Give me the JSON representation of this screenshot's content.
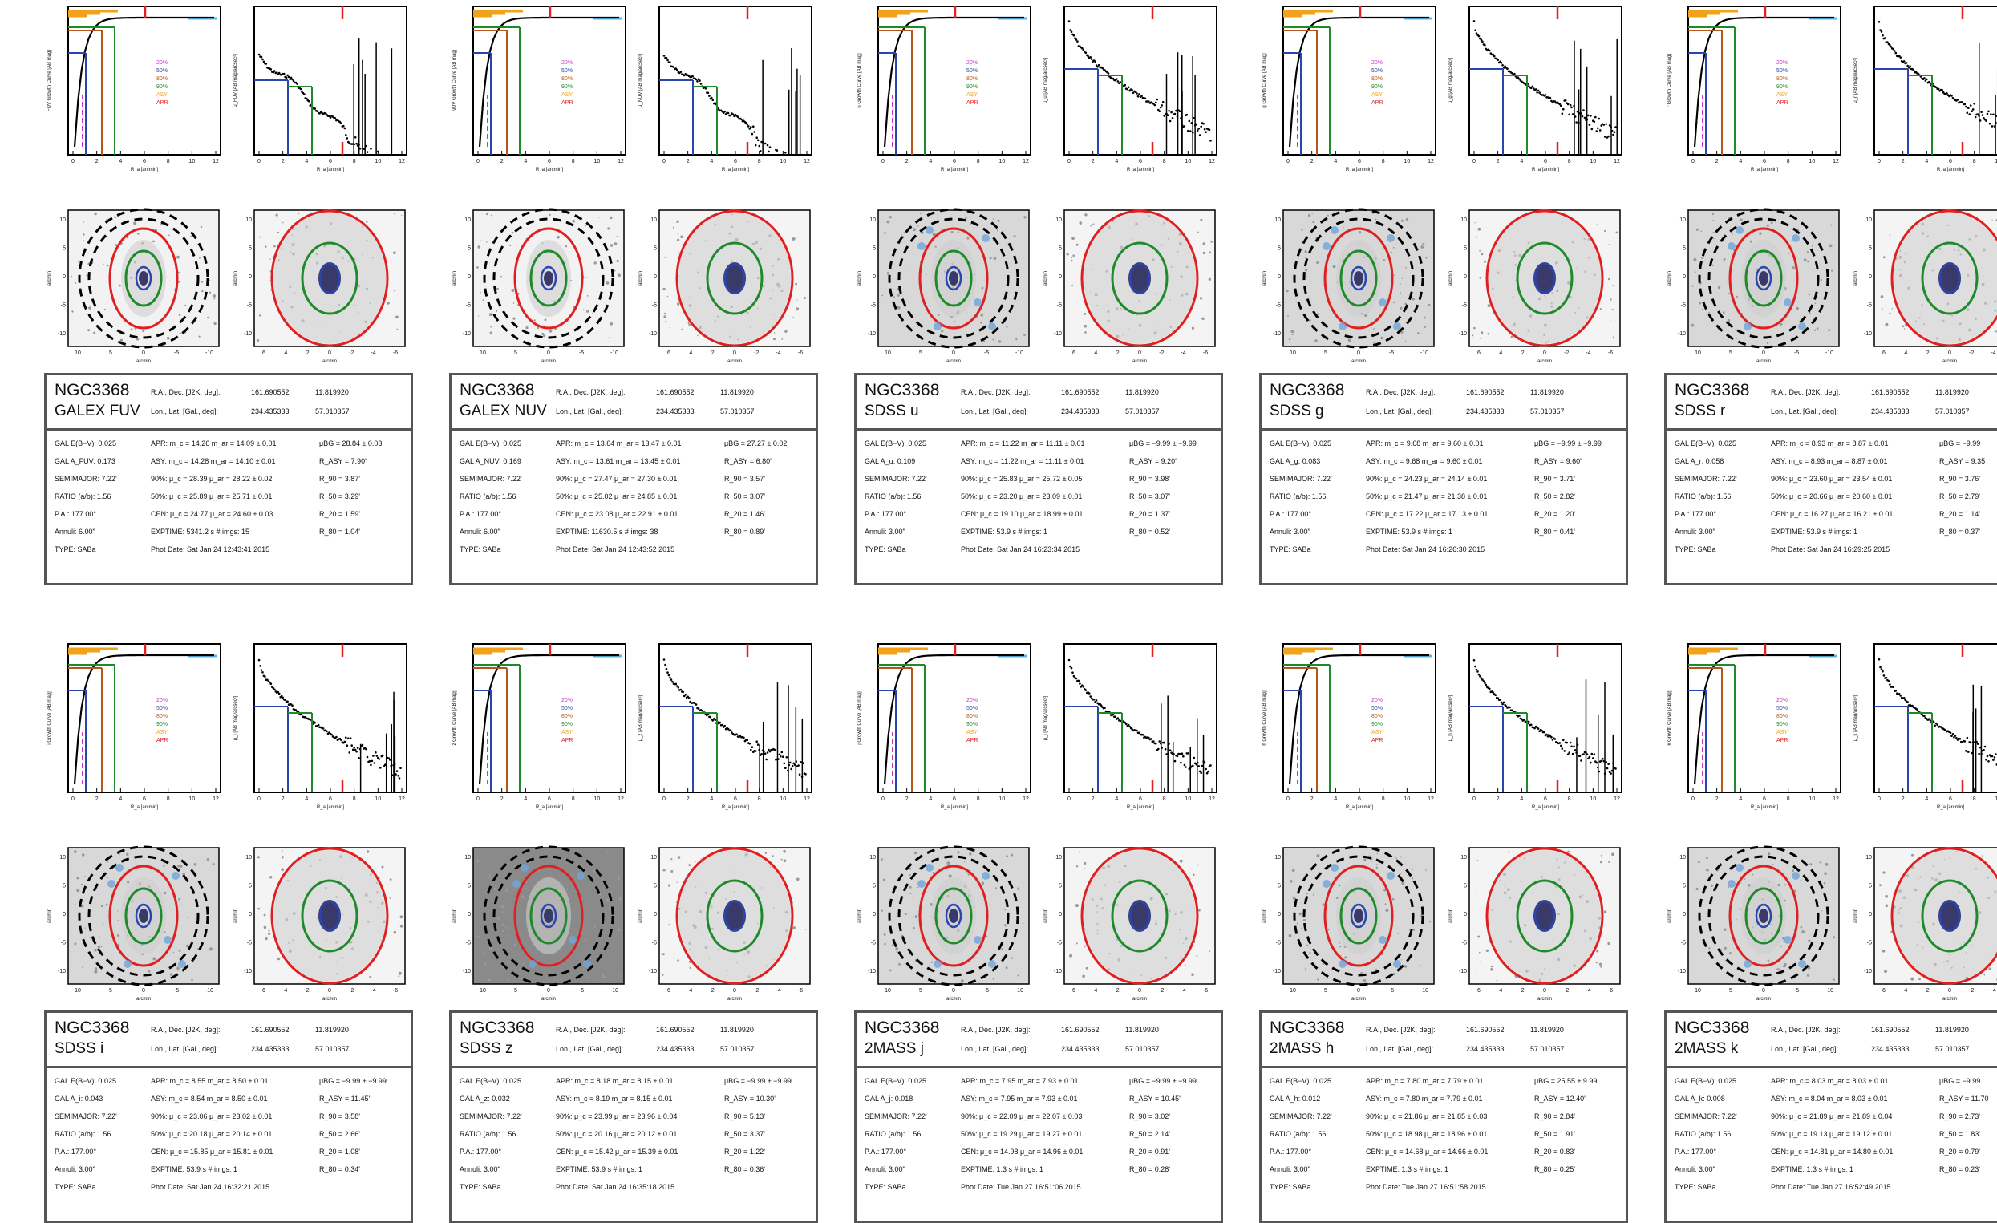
{
  "common": {
    "galaxy": "NGC3368",
    "radec_label": "R.A., Dec. [J2K, deg]:",
    "ra": "161.690552",
    "dec": "11.819920",
    "lonlat_label": "Lon., Lat. [Gal., deg]:",
    "lon": "234.435333",
    "lat": "57.010357",
    "semimajor": "SEMIMAJOR: 7.22'",
    "ratio": "RATIO (a/b): 1.56",
    "pa": "P.A.: 177.00°",
    "type": "TYPE: SABa",
    "legend": [
      "20%",
      "50%",
      "80%",
      "90%",
      "ASY",
      "APR"
    ],
    "legend_colors": [
      "#cc33cc",
      "#2a45b0",
      "#b5561b",
      "#1e8a2a",
      "#f2a21a",
      "#e02020"
    ],
    "xlabel": "R_a [arcmin]",
    "img_xlabel": "arcmin",
    "img_ylabel": "arcmin",
    "img_xticks_wide": [
      "10",
      "5",
      "0",
      "-5",
      "-10"
    ],
    "img_xticks_zoom": [
      "6",
      "4",
      "2",
      "0",
      "-2",
      "-4",
      "-6"
    ],
    "img_yticks": [
      "10",
      "5",
      "0",
      "-5",
      "-10"
    ],
    "plot_xticks": [
      "0",
      "2",
      "4",
      "6",
      "8",
      "10",
      "12"
    ]
  },
  "panels": [
    {
      "band": "GALEX FUV",
      "ylabel_growth": "FUV Growth Curve [AB mag]",
      "ylabel_profile": "μ_FUV [AB mag/arcsec²]",
      "ebv": "GAL E(B−V): 0.025",
      "ext": "GAL A_FUV: 0.173",
      "apr": "APR: m_c = 14.26  m_ar = 14.09 ± 0.01",
      "asy": "ASY: m_c = 14.28  m_ar = 14.10 ± 0.01",
      "p90": "90%: μ_c = 28.39  μ_ar = 28.22 ± 0.02",
      "p50": "50%: μ_c = 25.89  μ_ar = 25.71 ± 0.01",
      "cen": "CEN: μ_c = 24.77  μ_ar = 24.60 ± 0.03",
      "exptime": "EXPTIME: 5341.2 s  # imgs: 15",
      "annuli": "Annuli: 6.00\"",
      "photdate": "Phot Date: Sat Jan 24 12:43:41 2015",
      "mubg": "μBG = 28.84 ± 0.03",
      "rasy": "R_ASY = 7.90'",
      "r90": "R_90 = 3.87'",
      "r50": "R_50 = 3.29'",
      "r20": "R_20 = 1.59'",
      "r80": "R_80 = 1.04'"
    },
    {
      "band": "GALEX NUV",
      "ylabel_growth": "NUV Growth Curve [AB mag]",
      "ylabel_profile": "μ_NUV [AB mag/arcsec²]",
      "ebv": "GAL E(B−V): 0.025",
      "ext": "GAL A_NUV: 0.169",
      "apr": "APR: m_c = 13.64  m_ar = 13.47 ± 0.01",
      "asy": "ASY: m_c = 13.61  m_ar = 13.45 ± 0.01",
      "p90": "90%: μ_c = 27.47  μ_ar = 27.30 ± 0.01",
      "p50": "50%: μ_c = 25.02  μ_ar = 24.85 ± 0.01",
      "cen": "CEN: μ_c = 23.08  μ_ar = 22.91 ± 0.01",
      "exptime": "EXPTIME: 11630.5 s  # imgs: 38",
      "annuli": "Annuli: 6.00\"",
      "photdate": "Phot Date: Sat Jan 24 12:43:52 2015",
      "mubg": "μBG = 27.27 ± 0.02",
      "rasy": "R_ASY = 6.80'",
      "r90": "R_90 = 3.57'",
      "r50": "R_50 = 3.07'",
      "r20": "R_20 = 1.46'",
      "r80": "R_80 = 0.89'"
    },
    {
      "band": "SDSS u",
      "ylabel_growth": "u Growth Curve [AB mag]",
      "ylabel_profile": "μ_u [AB mag/arcsec²]",
      "ebv": "GAL E(B−V): 0.025",
      "ext": "GAL A_u: 0.109",
      "apr": "APR: m_c = 11.22  m_ar = 11.11 ± 0.01",
      "asy": "ASY: m_c = 11.22  m_ar = 11.11 ± 0.01",
      "p90": "90%: μ_c = 25.83  μ_ar = 25.72 ± 0.05",
      "p50": "50%: μ_c = 23.20  μ_ar = 23.09 ± 0.01",
      "cen": "CEN: μ_c = 19.10  μ_ar = 18.99 ± 0.01",
      "exptime": "EXPTIME: 53.9 s  # imgs: 1",
      "annuli": "Annuli: 3.00\"",
      "photdate": "Phot Date: Sat Jan 24 16:23:34 2015",
      "mubg": "μBG = −9.99 ± −9.99",
      "rasy": "R_ASY = 9.20'",
      "r90": "R_90 = 3.98'",
      "r50": "R_50 = 3.07'",
      "r20": "R_20 = 1.37'",
      "r80": "R_80 = 0.52'"
    },
    {
      "band": "SDSS g",
      "ylabel_growth": "g Growth Curve [AB mag]",
      "ylabel_profile": "μ_g [AB mag/arcsec²]",
      "ebv": "GAL E(B−V): 0.025",
      "ext": "GAL A_g: 0.083",
      "apr": "APR: m_c = 9.68  m_ar = 9.60 ± 0.01",
      "asy": "ASY: m_c = 9.68  m_ar = 9.60 ± 0.01",
      "p90": "90%: μ_c = 24.23  μ_ar = 24.14 ± 0.01",
      "p50": "50%: μ_c = 21.47  μ_ar = 21.38 ± 0.01",
      "cen": "CEN: μ_c = 17.22  μ_ar = 17.13 ± 0.01",
      "exptime": "EXPTIME: 53.9 s  # imgs: 1",
      "annuli": "Annuli: 3.00\"",
      "photdate": "Phot Date: Sat Jan 24 16:26:30 2015",
      "mubg": "μBG = −9.99 ± −9.99",
      "rasy": "R_ASY = 9.60'",
      "r90": "R_90 = 3.71'",
      "r50": "R_50 = 2.82'",
      "r20": "R_20 = 1.20'",
      "r80": "R_80 = 0.41'"
    },
    {
      "band": "SDSS r",
      "ylabel_growth": "r Growth Curve [AB mag]",
      "ylabel_profile": "μ_r [AB mag/arcsec²]",
      "ebv": "GAL E(B−V): 0.025",
      "ext": "GAL A_r: 0.058",
      "apr": "APR: m_c = 8.93  m_ar = 8.87 ± 0.01",
      "asy": "ASY: m_c = 8.93  m_ar = 8.87 ± 0.01",
      "p90": "90%: μ_c = 23.60  μ_ar = 23.54 ± 0.01",
      "p50": "50%: μ_c = 20.66  μ_ar = 20.60 ± 0.01",
      "cen": "CEN: μ_c = 16.27  μ_ar = 16.21 ± 0.01",
      "exptime": "EXPTIME: 53.9 s  # imgs: 1",
      "annuli": "Annuli: 3.00\"",
      "photdate": "Phot Date: Sat Jan 24 16:29:25 2015",
      "mubg": "μBG = −9.99",
      "rasy": "R_ASY = 9.35",
      "r90": "R_90 = 3.76'",
      "r50": "R_50 = 2.79'",
      "r20": "R_20 = 1.14'",
      "r80": "R_80 = 0.37'"
    },
    {
      "band": "SDSS i",
      "ylabel_growth": "i Growth Curve [AB mag]",
      "ylabel_profile": "μ_i [AB mag/arcsec²]",
      "ebv": "GAL E(B−V): 0.025",
      "ext": "GAL A_i: 0.043",
      "apr": "APR: m_c = 8.55  m_ar = 8.50 ± 0.01",
      "asy": "ASY: m_c = 8.54  m_ar = 8.50 ± 0.01",
      "p90": "90%: μ_c = 23.06  μ_ar = 23.02 ± 0.01",
      "p50": "50%: μ_c = 20.18  μ_ar = 20.14 ± 0.01",
      "cen": "CEN: μ_c = 15.85  μ_ar = 15.81 ± 0.01",
      "exptime": "EXPTIME: 53.9 s  # imgs: 1",
      "annuli": "Annuli: 3.00\"",
      "photdate": "Phot Date: Sat Jan 24 16:32:21 2015",
      "mubg": "μBG = −9.99 ± −9.99",
      "rasy": "R_ASY = 11.45'",
      "r90": "R_90 = 3.58'",
      "r50": "R_50 = 2.66'",
      "r20": "R_20 = 1.08'",
      "r80": "R_80 = 0.34'"
    },
    {
      "band": "SDSS z",
      "ylabel_growth": "z Growth Curve [AB mag]",
      "ylabel_profile": "μ_z [AB mag/arcsec²]",
      "ebv": "GAL E(B−V): 0.025",
      "ext": "GAL A_z: 0.032",
      "apr": "APR: m_c = 8.18  m_ar = 8.15 ± 0.01",
      "asy": "ASY: m_c = 8.19  m_ar = 8.15 ± 0.01",
      "p90": "90%: μ_c = 23.99  μ_ar = 23.96 ± 0.04",
      "p50": "50%: μ_c = 20.16  μ_ar = 20.12 ± 0.01",
      "cen": "CEN: μ_c = 15.42  μ_ar = 15.39 ± 0.01",
      "exptime": "EXPTIME: 53.9 s  # imgs: 1",
      "annuli": "Annuli: 3.00\"",
      "photdate": "Phot Date: Sat Jan 24 16:35:18 2015",
      "mubg": "μBG = −9.99 ± −9.99",
      "rasy": "R_ASY = 10.30'",
      "r90": "R_90 = 5.13'",
      "r50": "R_50 = 3.37'",
      "r20": "R_20 = 1.22'",
      "r80": "R_80 = 0.36'"
    },
    {
      "band": "2MASS j",
      "ylabel_growth": "j Growth Curve [AB mag]",
      "ylabel_profile": "μ_j [AB mag/arcsec²]",
      "ebv": "GAL E(B−V): 0.025",
      "ext": "GAL A_j: 0.018",
      "apr": "APR: m_c = 7.95  m_ar = 7.93 ± 0.01",
      "asy": "ASY: m_c = 7.95  m_ar = 7.93 ± 0.01",
      "p90": "90%: μ_c = 22.09  μ_ar = 22.07 ± 0.03",
      "p50": "50%: μ_c = 19.29  μ_ar = 19.27 ± 0.01",
      "cen": "CEN: μ_c = 14.98  μ_ar = 14.96 ± 0.01",
      "exptime": "EXPTIME: 1.3 s  # imgs: 1",
      "annuli": "Annuli: 3.00\"",
      "photdate": "Phot Date: Tue Jan 27 16:51:06 2015",
      "mubg": "μBG = −9.99 ± −9.99",
      "rasy": "R_ASY = 10.45'",
      "r90": "R_90 = 3.02'",
      "r50": "R_50 = 2.14'",
      "r20": "R_20 = 0.91'",
      "r80": "R_80 = 0.28'"
    },
    {
      "band": "2MASS h",
      "ylabel_growth": "h Growth Curve [AB mag]",
      "ylabel_profile": "μ_h [AB mag/arcsec²]",
      "ebv": "GAL E(B−V): 0.025",
      "ext": "GAL A_h: 0.012",
      "apr": "APR: m_c = 7.80  m_ar = 7.79 ± 0.01",
      "asy": "ASY: m_c = 7.80  m_ar = 7.79 ± 0.01",
      "p90": "90%: μ_c = 21.86  μ_ar = 21.85 ± 0.03",
      "p50": "50%: μ_c = 18.98  μ_ar = 18.96 ± 0.01",
      "cen": "CEN: μ_c = 14.68  μ_ar = 14.66 ± 0.01",
      "exptime": "EXPTIME: 1.3 s  # imgs: 1",
      "annuli": "Annuli: 3.00\"",
      "photdate": "Phot Date: Tue Jan 27 16:51:58 2015",
      "mubg": "μBG = 25.55 ± 9.99",
      "rasy": "R_ASY = 12.40'",
      "r90": "R_90 = 2.84'",
      "r50": "R_50 = 1.91'",
      "r20": "R_20 = 0.83'",
      "r80": "R_80 = 0.25'"
    },
    {
      "band": "2MASS k",
      "ylabel_growth": "k Growth Curve [AB mag]",
      "ylabel_profile": "μ_k [AB mag/arcsec²]",
      "ebv": "GAL E(B−V): 0.025",
      "ext": "GAL A_k: 0.008",
      "apr": "APR: m_c = 8.03  m_ar = 8.03 ± 0.01",
      "asy": "ASY: m_c = 8.04  m_ar = 8.03 ± 0.01",
      "p90": "90%: μ_c = 21.89  μ_ar = 21.89 ± 0.04",
      "p50": "50%: μ_c = 19.13  μ_ar = 19.12 ± 0.01",
      "cen": "CEN: μ_c = 14.81  μ_ar = 14.80 ± 0.01",
      "exptime": "EXPTIME: 1.3 s  # imgs: 1",
      "annuli": "Annuli: 3.00\"",
      "photdate": "Phot Date: Tue Jan 27 16:52:49 2015",
      "mubg": "μBG = −9.99",
      "rasy": "R_ASY = 11.70",
      "r90": "R_90 = 2.73'",
      "r50": "R_50 = 1.83'",
      "r20": "R_20 = 0.79'",
      "r80": "R_80 = 0.23'"
    }
  ]
}
